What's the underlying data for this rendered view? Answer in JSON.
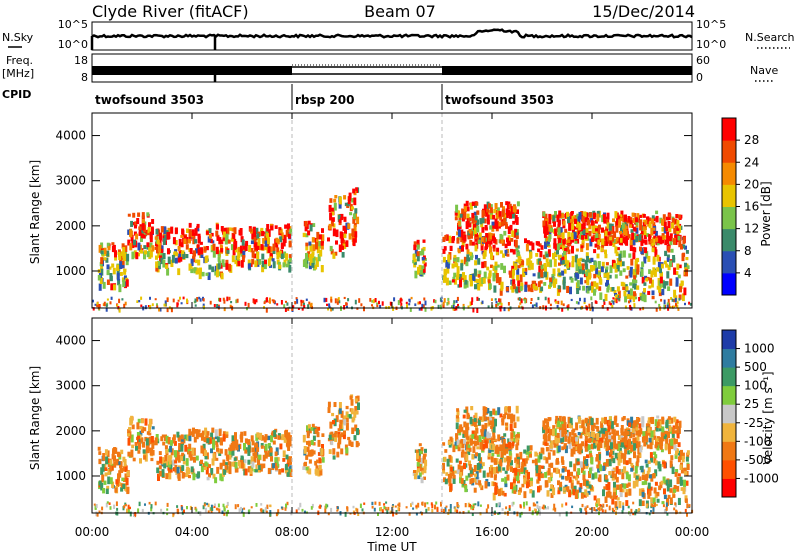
{
  "header": {
    "station": "Clyde River (fitACF)",
    "beam": "Beam 07",
    "date": "15/Dec/2014"
  },
  "left_labels": {
    "nsky": "N.Sky",
    "freq": "Freq.",
    "mhz": "[MHz]",
    "cpid": "CPID"
  },
  "right_labels": {
    "nsearch": "N.Search",
    "nave": "Nave"
  },
  "cpid_segments": [
    {
      "start_hour": 0,
      "end_hour": 8,
      "label": "twofsound 3503"
    },
    {
      "start_hour": 8,
      "end_hour": 14,
      "label": "rbsp 200"
    },
    {
      "start_hour": 14,
      "end_hour": 24,
      "label": "twofsound 3503"
    }
  ],
  "noise_axis": {
    "left_ticks": [
      "10^5",
      "10^0"
    ],
    "right_ticks": [
      "10^5",
      "10^0"
    ]
  },
  "freq_axis": {
    "left_ticks": [
      "18",
      "8"
    ],
    "right_ticks": [
      "60",
      "0"
    ]
  },
  "time_axis": {
    "label": "Time UT",
    "ticks": [
      "00:00",
      "04:00",
      "08:00",
      "12:00",
      "16:00",
      "20:00",
      "00:00"
    ]
  },
  "panels": [
    {
      "ylabel": "Slant Range [km]",
      "yticks": [
        "1000",
        "2000",
        "3000",
        "4000"
      ],
      "colorbar": {
        "label": "Power [dB]",
        "ticks": [
          "4",
          "8",
          "12",
          "16",
          "20",
          "24",
          "28"
        ],
        "colors": [
          "#0000ff",
          "#2a4fb4",
          "#3a8a6a",
          "#7ac44a",
          "#e8c400",
          "#f58a00",
          "#f04a00",
          "#ff0000"
        ]
      }
    },
    {
      "ylabel": "Slant Range [km]",
      "yticks": [
        "1000",
        "2000",
        "3000",
        "4000"
      ],
      "colorbar": {
        "label": "Velocity [m s⁻¹]",
        "ticks": [
          "1000",
          "500",
          "100",
          "25",
          "-25",
          "-100",
          "-500",
          "-1000"
        ],
        "colors": [
          "#1e3ca8",
          "#2f7ca0",
          "#3c9a64",
          "#7fcc3c",
          "#c8c8c8",
          "#f0b43c",
          "#f07814",
          "#ff5000",
          "#ff0000"
        ]
      }
    }
  ],
  "chart_data": {
    "type": "heatmap",
    "x_range_hours": [
      0,
      24
    ],
    "y_range_km": [
      180,
      4500
    ],
    "scan_boundaries_hours": [
      8,
      14
    ]
  }
}
